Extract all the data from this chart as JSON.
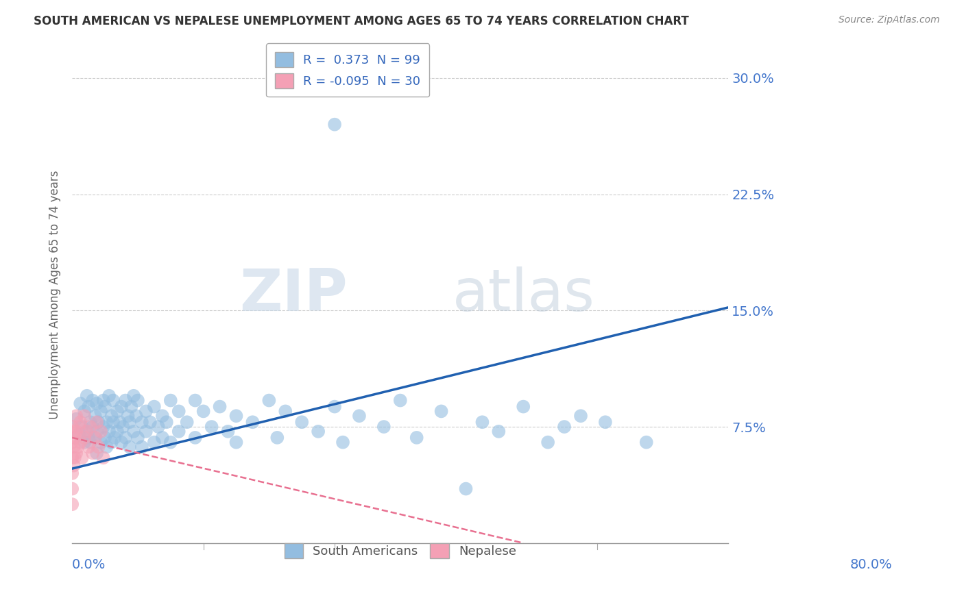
{
  "title": "SOUTH AMERICAN VS NEPALESE UNEMPLOYMENT AMONG AGES 65 TO 74 YEARS CORRELATION CHART",
  "source": "Source: ZipAtlas.com",
  "ylabel": "Unemployment Among Ages 65 to 74 years",
  "xlim": [
    0.0,
    0.8
  ],
  "ylim": [
    0.0,
    0.32
  ],
  "south_american_color": "#93bde0",
  "nepalese_color": "#f4a0b5",
  "regression_blue_color": "#2060b0",
  "regression_pink_color": "#e87090",
  "watermark_zip": "ZIP",
  "watermark_atlas": "atlas",
  "south_american_points": [
    [
      0.005,
      0.08
    ],
    [
      0.008,
      0.07
    ],
    [
      0.01,
      0.09
    ],
    [
      0.012,
      0.075
    ],
    [
      0.015,
      0.065
    ],
    [
      0.015,
      0.085
    ],
    [
      0.018,
      0.072
    ],
    [
      0.018,
      0.095
    ],
    [
      0.02,
      0.068
    ],
    [
      0.02,
      0.088
    ],
    [
      0.022,
      0.078
    ],
    [
      0.022,
      0.065
    ],
    [
      0.025,
      0.075
    ],
    [
      0.025,
      0.092
    ],
    [
      0.028,
      0.082
    ],
    [
      0.028,
      0.068
    ],
    [
      0.03,
      0.072
    ],
    [
      0.03,
      0.058
    ],
    [
      0.03,
      0.09
    ],
    [
      0.032,
      0.078
    ],
    [
      0.035,
      0.065
    ],
    [
      0.035,
      0.085
    ],
    [
      0.038,
      0.075
    ],
    [
      0.038,
      0.092
    ],
    [
      0.04,
      0.068
    ],
    [
      0.04,
      0.088
    ],
    [
      0.042,
      0.078
    ],
    [
      0.042,
      0.062
    ],
    [
      0.045,
      0.072
    ],
    [
      0.045,
      0.095
    ],
    [
      0.048,
      0.082
    ],
    [
      0.048,
      0.065
    ],
    [
      0.05,
      0.078
    ],
    [
      0.05,
      0.092
    ],
    [
      0.052,
      0.068
    ],
    [
      0.055,
      0.085
    ],
    [
      0.055,
      0.072
    ],
    [
      0.058,
      0.078
    ],
    [
      0.06,
      0.065
    ],
    [
      0.06,
      0.088
    ],
    [
      0.062,
      0.075
    ],
    [
      0.065,
      0.092
    ],
    [
      0.065,
      0.068
    ],
    [
      0.068,
      0.082
    ],
    [
      0.07,
      0.078
    ],
    [
      0.07,
      0.062
    ],
    [
      0.072,
      0.088
    ],
    [
      0.075,
      0.072
    ],
    [
      0.075,
      0.095
    ],
    [
      0.078,
      0.082
    ],
    [
      0.08,
      0.068
    ],
    [
      0.08,
      0.092
    ],
    [
      0.085,
      0.078
    ],
    [
      0.085,
      0.062
    ],
    [
      0.09,
      0.085
    ],
    [
      0.09,
      0.072
    ],
    [
      0.095,
      0.078
    ],
    [
      0.1,
      0.065
    ],
    [
      0.1,
      0.088
    ],
    [
      0.105,
      0.075
    ],
    [
      0.11,
      0.082
    ],
    [
      0.11,
      0.068
    ],
    [
      0.115,
      0.078
    ],
    [
      0.12,
      0.092
    ],
    [
      0.12,
      0.065
    ],
    [
      0.13,
      0.085
    ],
    [
      0.13,
      0.072
    ],
    [
      0.14,
      0.078
    ],
    [
      0.15,
      0.068
    ],
    [
      0.15,
      0.092
    ],
    [
      0.16,
      0.085
    ],
    [
      0.17,
      0.075
    ],
    [
      0.18,
      0.088
    ],
    [
      0.19,
      0.072
    ],
    [
      0.2,
      0.082
    ],
    [
      0.2,
      0.065
    ],
    [
      0.22,
      0.078
    ],
    [
      0.24,
      0.092
    ],
    [
      0.25,
      0.068
    ],
    [
      0.26,
      0.085
    ],
    [
      0.28,
      0.078
    ],
    [
      0.3,
      0.072
    ],
    [
      0.32,
      0.088
    ],
    [
      0.33,
      0.065
    ],
    [
      0.35,
      0.082
    ],
    [
      0.38,
      0.075
    ],
    [
      0.4,
      0.092
    ],
    [
      0.42,
      0.068
    ],
    [
      0.45,
      0.085
    ],
    [
      0.48,
      0.035
    ],
    [
      0.5,
      0.078
    ],
    [
      0.52,
      0.072
    ],
    [
      0.55,
      0.088
    ],
    [
      0.58,
      0.065
    ],
    [
      0.6,
      0.075
    ],
    [
      0.62,
      0.082
    ],
    [
      0.65,
      0.078
    ],
    [
      0.7,
      0.065
    ],
    [
      0.32,
      0.27
    ]
  ],
  "nepalese_points": [
    [
      0.0,
      0.045
    ],
    [
      0.0,
      0.055
    ],
    [
      0.0,
      0.065
    ],
    [
      0.0,
      0.075
    ],
    [
      0.002,
      0.05
    ],
    [
      0.002,
      0.062
    ],
    [
      0.002,
      0.072
    ],
    [
      0.003,
      0.055
    ],
    [
      0.003,
      0.068
    ],
    [
      0.005,
      0.058
    ],
    [
      0.005,
      0.072
    ],
    [
      0.005,
      0.082
    ],
    [
      0.007,
      0.062
    ],
    [
      0.008,
      0.075
    ],
    [
      0.01,
      0.065
    ],
    [
      0.01,
      0.078
    ],
    [
      0.012,
      0.055
    ],
    [
      0.015,
      0.068
    ],
    [
      0.015,
      0.082
    ],
    [
      0.018,
      0.072
    ],
    [
      0.02,
      0.062
    ],
    [
      0.022,
      0.075
    ],
    [
      0.025,
      0.058
    ],
    [
      0.028,
      0.068
    ],
    [
      0.03,
      0.078
    ],
    [
      0.032,
      0.062
    ],
    [
      0.035,
      0.072
    ],
    [
      0.038,
      0.055
    ],
    [
      0.0,
      0.035
    ],
    [
      0.0,
      0.025
    ]
  ],
  "sa_line_x0": 0.0,
  "sa_line_y0": 0.048,
  "sa_line_x1": 0.8,
  "sa_line_y1": 0.152,
  "nep_line_x0": 0.0,
  "nep_line_y0": 0.068,
  "nep_line_x1": 0.55,
  "nep_line_y1": 0.0
}
